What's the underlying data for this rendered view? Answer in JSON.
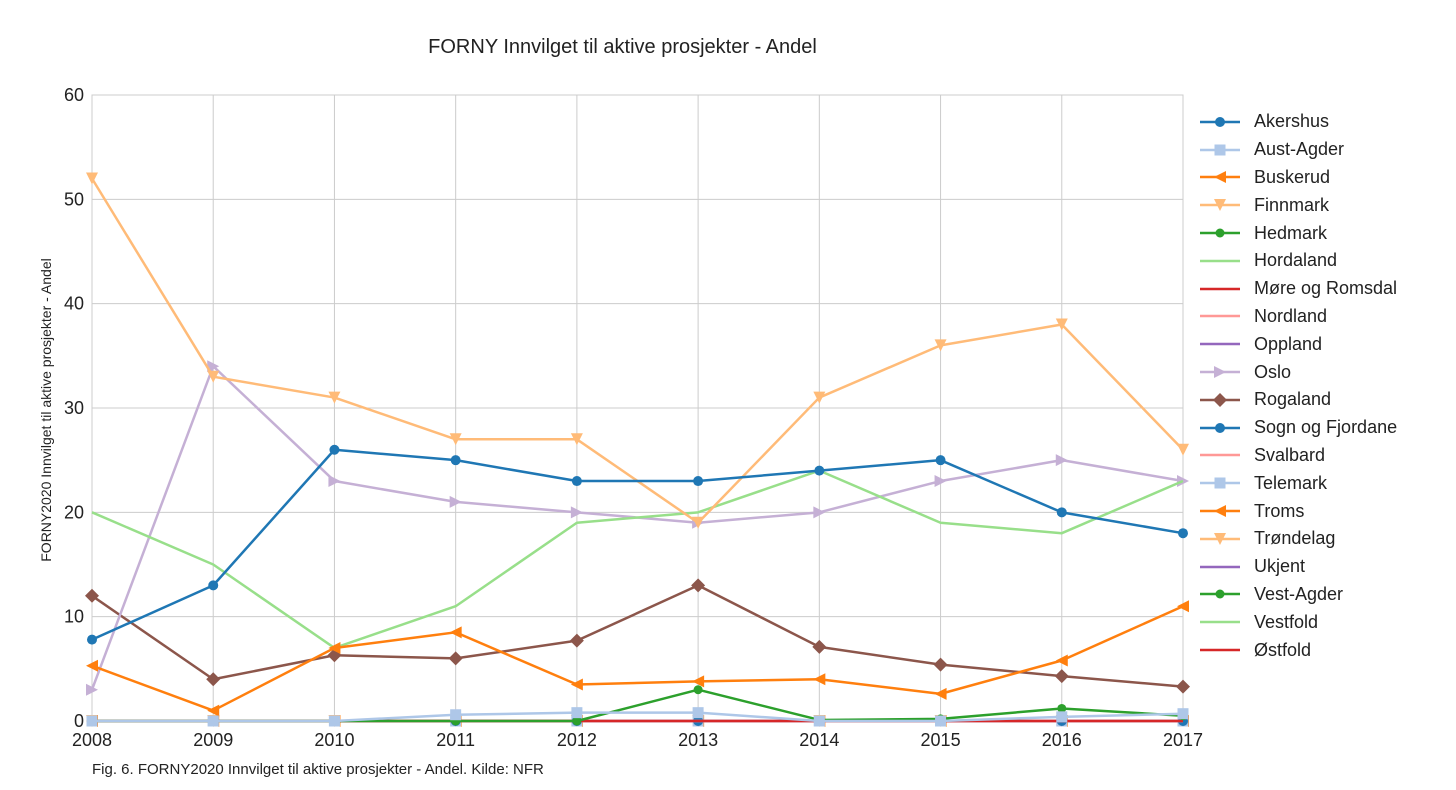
{
  "chart_data": {
    "type": "line",
    "title": "FORNY Innvilget til aktive prosjekter - Andel",
    "ylabel": "FORNY2020 Innvilget til aktive prosjekter - Andel",
    "xlabel": "",
    "x": [
      2008,
      2009,
      2010,
      2011,
      2012,
      2013,
      2014,
      2015,
      2016,
      2017
    ],
    "xlim": [
      2008,
      2017
    ],
    "ylim": [
      0,
      60
    ],
    "yticks": [
      0,
      10,
      20,
      30,
      40,
      50,
      60
    ],
    "grid": true,
    "legend_position": "right",
    "series": [
      {
        "name": "Akershus",
        "color": "#1f77b4",
        "marker": "circle",
        "values": [
          7.8,
          13,
          26,
          25,
          23,
          23,
          24,
          25,
          20,
          18
        ]
      },
      {
        "name": "Aust-Agder",
        "color": "#aec7e8",
        "marker": "square",
        "values": [
          0,
          0,
          0,
          0.6,
          0.8,
          0.8,
          0,
          0,
          0.4,
          0.7
        ]
      },
      {
        "name": "Buskerud",
        "color": "#ff7f0e",
        "marker": "triangle-left",
        "values": [
          5.3,
          1,
          7,
          8.5,
          3.5,
          3.8,
          4,
          2.6,
          5.8,
          11
        ]
      },
      {
        "name": "Finnmark",
        "color": "#ffbb78",
        "marker": "triangle-down",
        "values": [
          52,
          33,
          31,
          27,
          27,
          19,
          31,
          36,
          38,
          26
        ]
      },
      {
        "name": "Hedmark",
        "color": "#2ca02c",
        "marker": "circle-small",
        "values": [
          0,
          0,
          0,
          0,
          0,
          3,
          0.1,
          0.2,
          1.2,
          0.5
        ]
      },
      {
        "name": "Hordaland",
        "color": "#98df8a",
        "marker": "none",
        "values": [
          20,
          15,
          7,
          11,
          19,
          20,
          24,
          19,
          18,
          23
        ]
      },
      {
        "name": "Møre og Romsdal",
        "color": "#d62728",
        "marker": "none",
        "values": [
          0,
          0,
          0,
          0,
          0,
          0,
          0,
          0,
          0,
          0
        ]
      },
      {
        "name": "Nordland",
        "color": "#ff9896",
        "marker": "none",
        "values": [
          0,
          0,
          0,
          0,
          0,
          0,
          0,
          0,
          0,
          0
        ]
      },
      {
        "name": "Oppland",
        "color": "#9467bd",
        "marker": "none",
        "values": [
          0,
          0,
          0,
          0,
          0,
          0,
          0,
          0,
          0,
          0
        ]
      },
      {
        "name": "Oslo",
        "color": "#c5b0d5",
        "marker": "triangle-right",
        "values": [
          3,
          34,
          23,
          21,
          20,
          19,
          20,
          23,
          25,
          23
        ]
      },
      {
        "name": "Rogaland",
        "color": "#8c564b",
        "marker": "diamond",
        "values": [
          12,
          4,
          6.3,
          6,
          7.7,
          13,
          7.1,
          5.4,
          4.3,
          3.3
        ]
      },
      {
        "name": "Sogn og Fjordane",
        "color": "#1f77b4",
        "marker": "circle",
        "values": [
          0,
          0,
          0,
          0,
          0,
          0,
          0,
          0,
          0,
          0
        ]
      },
      {
        "name": "Svalbard",
        "color": "#ff9896",
        "marker": "none",
        "values": [
          0,
          0,
          0,
          0,
          0,
          0,
          0,
          0,
          0,
          0
        ]
      },
      {
        "name": "Telemark",
        "color": "#aec7e8",
        "marker": "square",
        "values": [
          0,
          0,
          0,
          0,
          0,
          0,
          0,
          0,
          0,
          0
        ]
      },
      {
        "name": "Troms",
        "color": "#ff7f0e",
        "marker": "triangle-left",
        "values": [
          0,
          0,
          0,
          0,
          0,
          0,
          0,
          0,
          0,
          0
        ]
      },
      {
        "name": "Trøndelag",
        "color": "#ffbb78",
        "marker": "triangle-down",
        "values": [
          0,
          0,
          0,
          0,
          0,
          0,
          0,
          0,
          0,
          0
        ]
      },
      {
        "name": "Ukjent",
        "color": "#9467bd",
        "marker": "none",
        "values": [
          0,
          0,
          0,
          0,
          0,
          0,
          0,
          0,
          0,
          0
        ]
      },
      {
        "name": "Vest-Agder",
        "color": "#2ca02c",
        "marker": "circle-small",
        "values": [
          0,
          0,
          0,
          0,
          0,
          0,
          0,
          0,
          0,
          0
        ]
      },
      {
        "name": "Vestfold",
        "color": "#98df8a",
        "marker": "none",
        "values": [
          0,
          0,
          0,
          0,
          0,
          0,
          0,
          0,
          0,
          0
        ]
      },
      {
        "name": "Østfold",
        "color": "#d62728",
        "marker": "none",
        "values": [
          0,
          0,
          0,
          0,
          0,
          0,
          0,
          0,
          0,
          0
        ]
      }
    ]
  },
  "caption": "Fig. 6. FORNY2020 Innvilget til aktive prosjekter - Andel. Kilde: NFR"
}
